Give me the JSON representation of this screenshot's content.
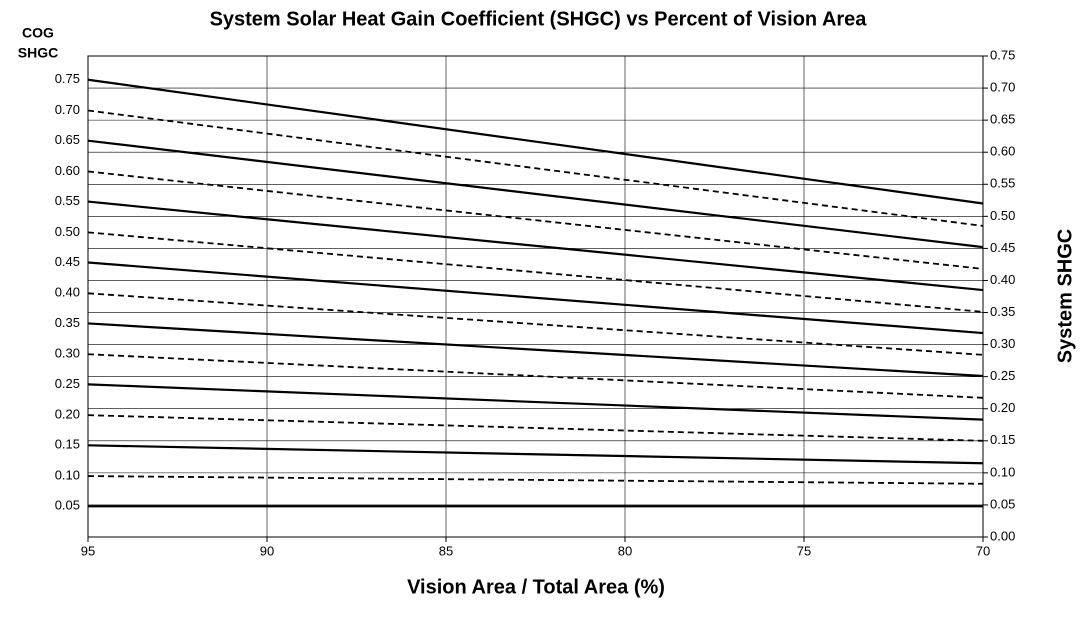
{
  "chart_data": {
    "type": "line",
    "title": "System Solar Heat Gain Coefficient (SHGC) vs Percent of Vision Area",
    "left_axis_title": [
      "COG",
      "SHGC"
    ],
    "x_label": "Vision Area / Total Area (%)",
    "y_label": "System SHGC",
    "x": [
      95,
      70
    ],
    "xlim": [
      95,
      70
    ],
    "xticks": [
      95,
      90,
      85,
      80,
      75,
      70
    ],
    "ylim": [
      0,
      0.75
    ],
    "yaxis_side": "right",
    "yticks": [
      {
        "value": 0,
        "label": "0.00"
      },
      0.05,
      {
        "value": 0.1,
        "label": "0.10"
      },
      0.15,
      {
        "value": 0.2,
        "label": "0.20"
      },
      0.25,
      {
        "value": 0.3,
        "label": "0.30"
      },
      0.35,
      {
        "value": 0.4,
        "label": "0.40"
      },
      0.45,
      {
        "value": 0.5,
        "label": "0.50"
      },
      0.55,
      {
        "value": 0.6,
        "label": "0.60"
      },
      0.65,
      {
        "value": 0.7,
        "label": "0.70"
      },
      0.75
    ],
    "grid": true,
    "series": [
      {
        "name": "0.75",
        "color": "#000000",
        "style": "solid",
        "values": [
          0.713,
          0.52
        ]
      },
      {
        "name": "0.70",
        "color": "#000000",
        "style": "dashed",
        "values": [
          0.665,
          0.485
        ]
      },
      {
        "name": "0.65",
        "color": "#000000",
        "style": "solid",
        "values": [
          0.618,
          0.452
        ]
      },
      {
        "name": "0.60",
        "color": "#000000",
        "style": "dashed",
        "values": [
          0.57,
          0.418
        ]
      },
      {
        "name": "0.55",
        "color": "#000000",
        "style": "solid",
        "values": [
          0.523,
          0.385
        ]
      },
      {
        "name": "0.50",
        "color": "#000000",
        "style": "dashed",
        "values": [
          0.475,
          0.351
        ]
      },
      {
        "name": "0.45",
        "color": "#000000",
        "style": "solid",
        "values": [
          0.428,
          0.318
        ]
      },
      {
        "name": "0.40",
        "color": "#000000",
        "style": "dashed",
        "values": [
          0.38,
          0.284
        ]
      },
      {
        "name": "0.35",
        "color": "#000000",
        "style": "solid",
        "values": [
          0.333,
          0.251
        ]
      },
      {
        "name": "0.30",
        "color": "#000000",
        "style": "dashed",
        "values": [
          0.285,
          0.217
        ]
      },
      {
        "name": "0.25",
        "color": "#000000",
        "style": "solid",
        "values": [
          0.238,
          0.183
        ]
      },
      {
        "name": "0.20",
        "color": "#000000",
        "style": "dashed",
        "values": [
          0.19,
          0.15
        ]
      },
      {
        "name": "0.15",
        "color": "#000000",
        "style": "solid",
        "values": [
          0.143,
          0.115
        ]
      },
      {
        "name": "0.10",
        "color": "#000000",
        "style": "dashed",
        "values": [
          0.095,
          0.083
        ]
      },
      {
        "name": "0.05",
        "color": "#000000",
        "style": "solid",
        "values": [
          0.048,
          0.048
        ]
      }
    ]
  }
}
